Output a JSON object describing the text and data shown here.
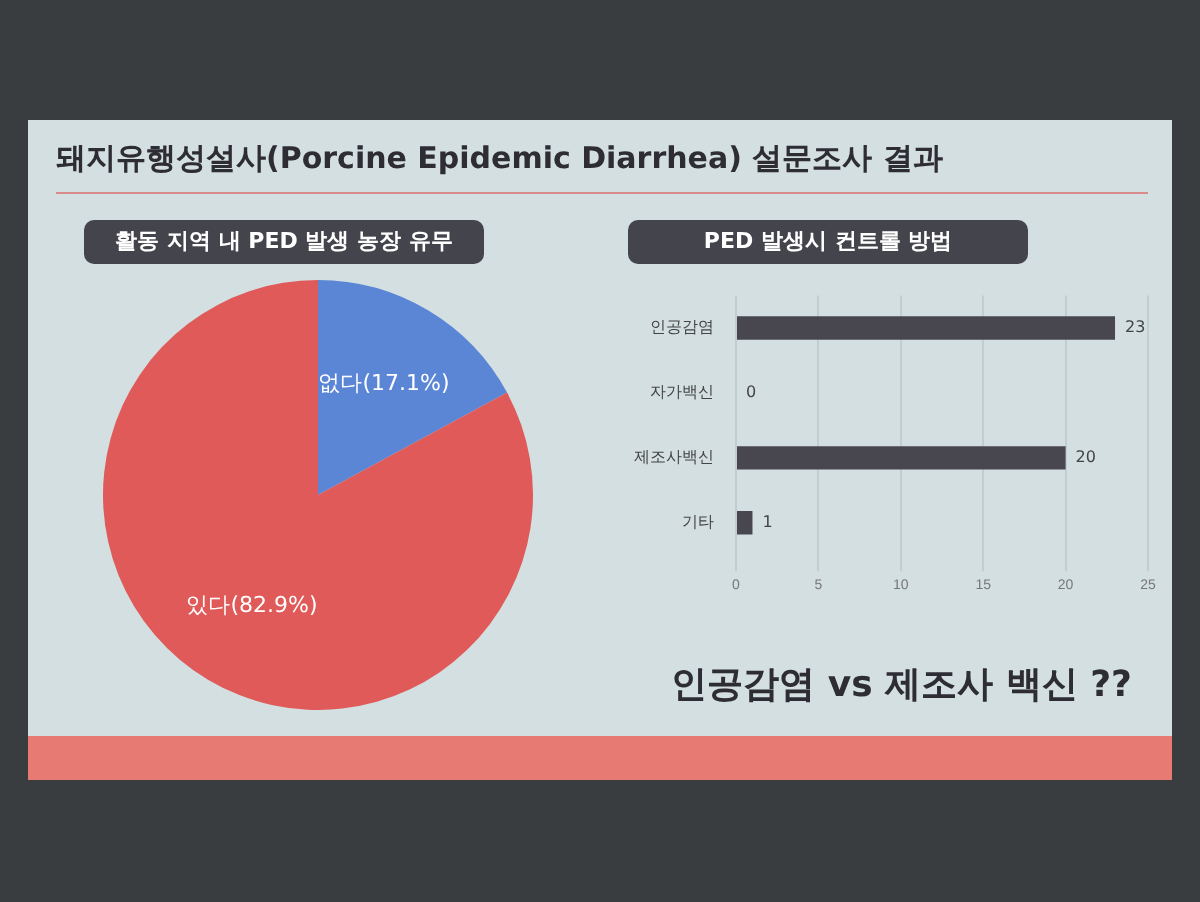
{
  "chart_data": [
    {
      "type": "pie",
      "title": "활동 지역 내 PED 발생 농장 유무",
      "annotations": [
        "돼지유행성설사(Porcine Epidemic Diarrhea) 설문조사 결과"
      ],
      "categories": [
        "없다(17.1%)",
        "있다(82.9%)"
      ],
      "values": [
        17.1,
        82.9
      ],
      "colors": [
        "#5b86d6",
        "#df5a58"
      ],
      "legend": false
    },
    {
      "type": "bar",
      "title": "PED 발생시 컨트롤 방법",
      "orientation": "horizontal",
      "annotations": [
        "인공감염 vs 제조사 백신 ??"
      ],
      "categories": [
        "인공감염",
        "자가백신",
        "제조사백신",
        "기타"
      ],
      "values": [
        23,
        0,
        20,
        1
      ],
      "color": "#48474f",
      "xlim": [
        0,
        25
      ],
      "xticks": [
        0,
        5,
        10,
        15,
        20,
        25
      ],
      "grid": "x",
      "data_labels": true,
      "legend": false
    }
  ]
}
